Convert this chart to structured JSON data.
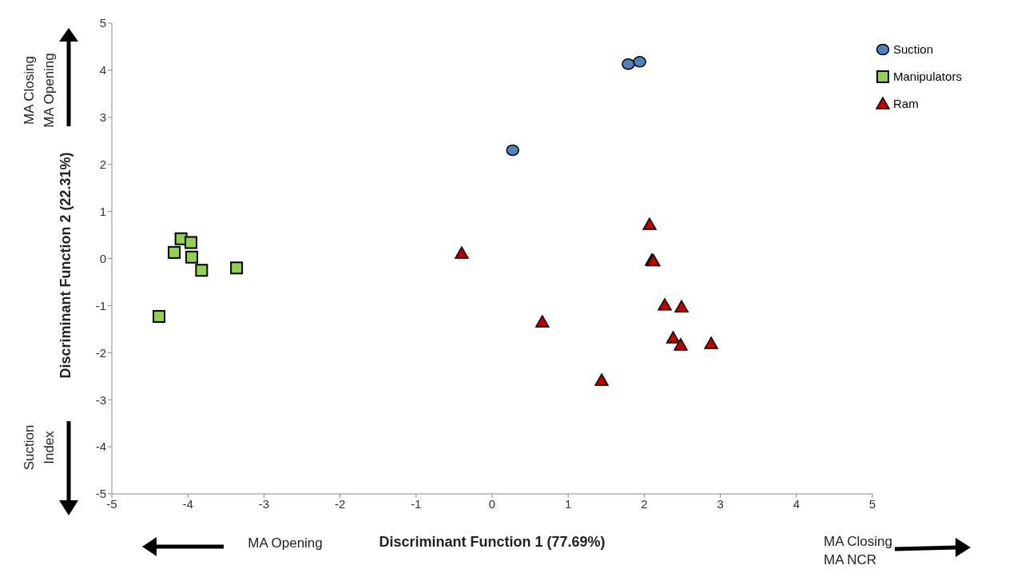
{
  "chart_data": {
    "type": "scatter",
    "xlabel": "Discriminant Function 1 (77.69%)",
    "ylabel": "Discriminant Function 2 (22.31%)",
    "xlim": [
      -5,
      5
    ],
    "xticks": [
      -5,
      -4,
      -3,
      -2,
      -1,
      0,
      1,
      2,
      3,
      4,
      5
    ],
    "ylim": [
      -5,
      5
    ],
    "yticks": [
      -5,
      -4,
      -3,
      -2,
      -1,
      0,
      1,
      2,
      3,
      4,
      5
    ],
    "grid": false,
    "legend": "top right",
    "annotations": [
      "MA Closing",
      "MA Opening",
      "Suction",
      "Index",
      "MA Opening",
      "MA Closing",
      "MA NCR"
    ],
    "series": [
      {
        "name": "Suction",
        "color": "#4f81bd",
        "marker": "circle",
        "x": [
          1.79,
          1.94,
          0.27
        ],
        "values": [
          4.13,
          4.18,
          2.3
        ]
      },
      {
        "name": "Manipulators",
        "color": "#92d050",
        "marker": "square",
        "x": [
          -4.09,
          -3.96,
          -4.18,
          -3.95,
          -3.82,
          -3.36,
          -4.38
        ],
        "values": [
          0.42,
          0.34,
          0.13,
          0.03,
          -0.25,
          -0.2,
          -1.23
        ]
      },
      {
        "name": "Ram",
        "color": "#c00000",
        "marker": "triangle",
        "x": [
          -0.4,
          2.07,
          2.1,
          2.12,
          2.27,
          2.49,
          0.66,
          2.38,
          2.48,
          2.88,
          1.44
        ],
        "values": [
          0.11,
          0.72,
          -0.04,
          -0.05,
          -0.99,
          -1.03,
          -1.35,
          -1.69,
          -1.84,
          -1.81,
          -2.59
        ]
      }
    ]
  }
}
